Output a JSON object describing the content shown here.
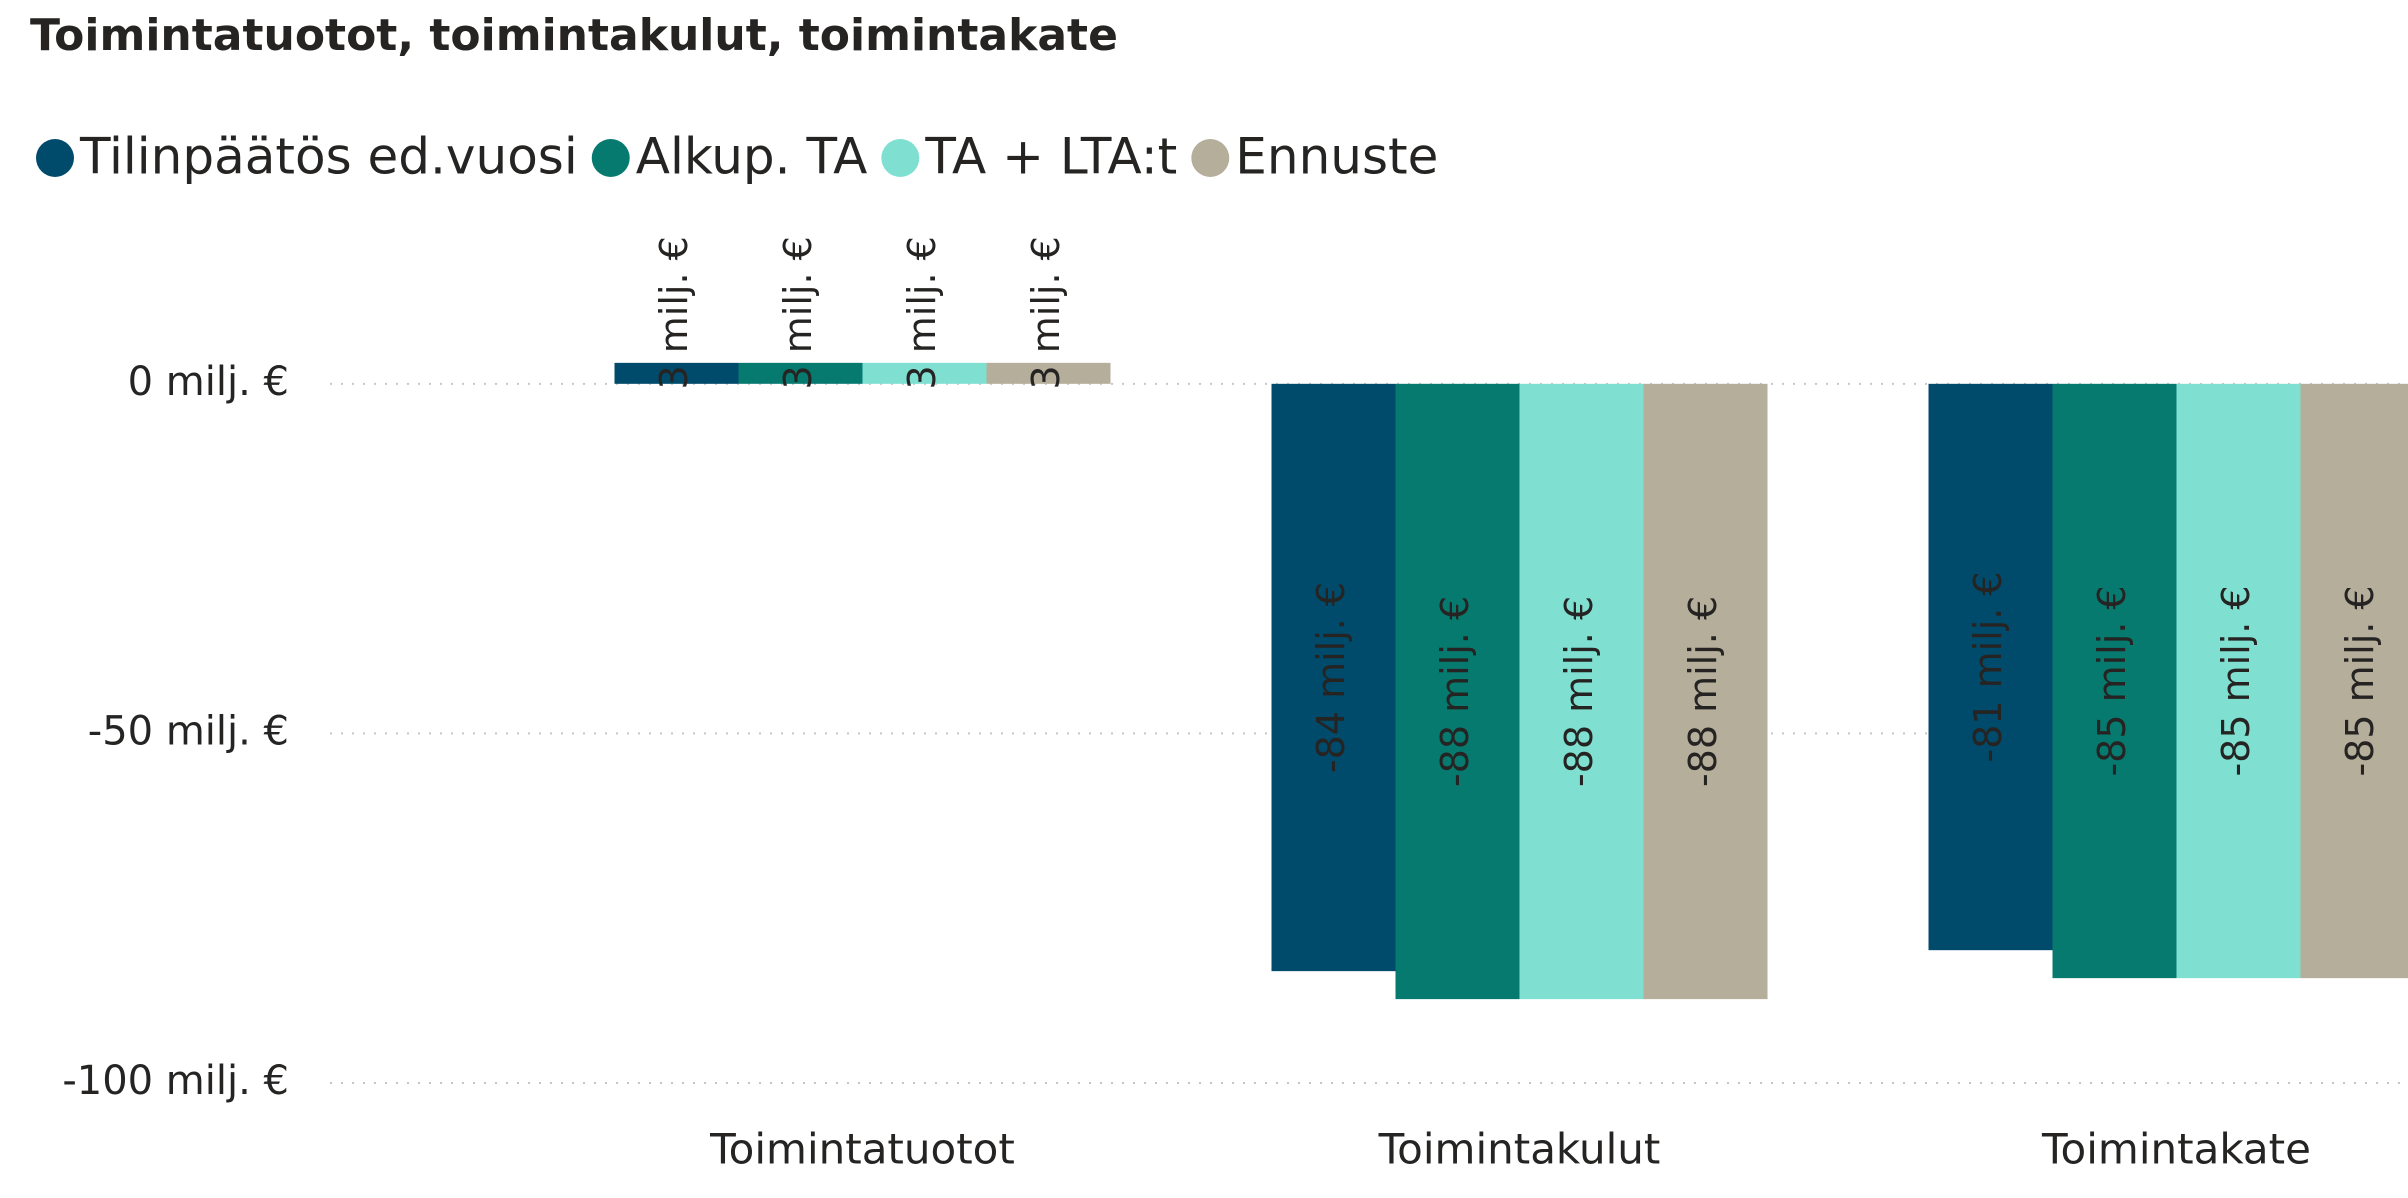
{
  "chart_data": {
    "type": "bar",
    "title": "Toimintatuotot, toimintakulut, toimintakate",
    "categories": [
      "Toimintatuotot",
      "Toimintakulut",
      "Toimintakate"
    ],
    "series": [
      {
        "name": "Tilinpäätös ed.vuosi",
        "color": "#004b6b",
        "values": [
          3,
          -84,
          -81
        ],
        "value_labels": [
          "3 milj. €",
          "-84 milj. €",
          "-81 milj. €"
        ]
      },
      {
        "name": "Alkup. TA",
        "color": "#077a70",
        "values": [
          3,
          -88,
          -85
        ],
        "value_labels": [
          "3 milj. €",
          "-88 milj. €",
          "-85 milj. €"
        ]
      },
      {
        "name": "TA + LTA:t",
        "color": "#7fe0d2",
        "values": [
          3,
          -88,
          -85
        ],
        "value_labels": [
          "3 milj. €",
          "-88 milj. €",
          "-85 milj. €"
        ]
      },
      {
        "name": "Ennuste",
        "color": "#b5ae9b",
        "values": [
          3,
          -88,
          -85
        ],
        "value_labels": [
          "3 milj. €",
          "-88 milj. €",
          "-85 milj. €"
        ]
      }
    ],
    "ylim": [
      -103,
      22
    ],
    "yticks": [
      {
        "value": 0,
        "label": "0 milj. €"
      },
      {
        "value": -50,
        "label": "-50 milj. €"
      },
      {
        "value": -100,
        "label": "-100 milj. €"
      }
    ],
    "grid": true,
    "legend": "top-left"
  }
}
